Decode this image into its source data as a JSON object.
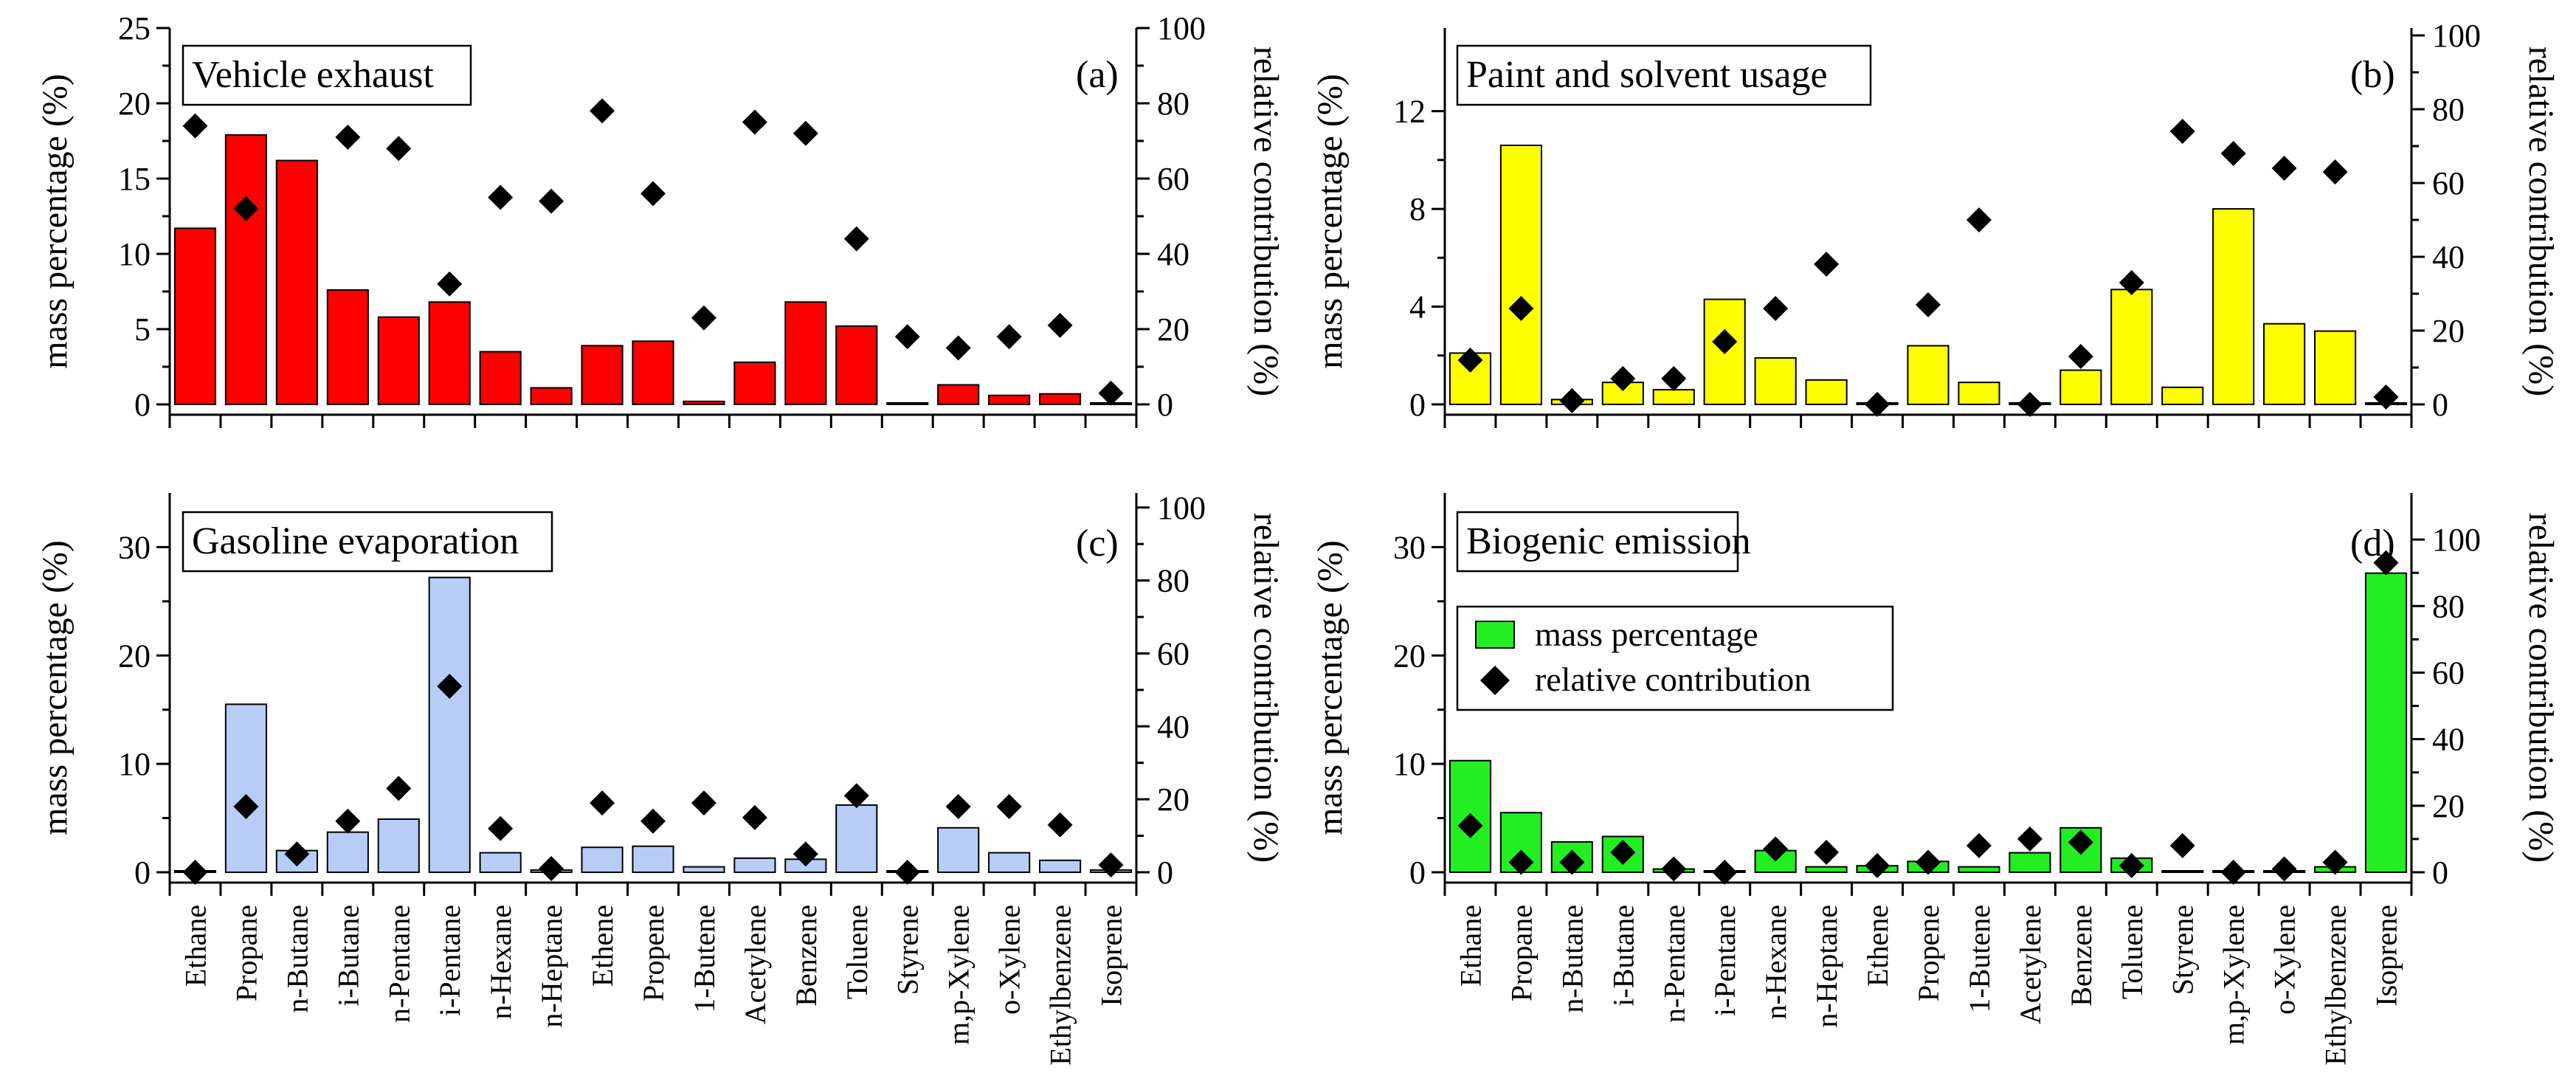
{
  "chart_data": [
    {
      "type": "bar",
      "panel_label": "(a)",
      "title": "Vehicle exhaust",
      "ylabel": "mass percentage (%)",
      "y2label": "relative contribution (%)",
      "ylim": [
        0,
        25
      ],
      "yticks": [
        0,
        5,
        10,
        15,
        20,
        25
      ],
      "y2lim": [
        0,
        100
      ],
      "y2ticks": [
        0,
        20,
        40,
        60,
        80,
        100
      ],
      "bar_color": "#ff0000",
      "categories": [
        "Ethane",
        "Propane",
        "n-Butane",
        "i-Butane",
        "n-Pentane",
        "i-Pentane",
        "n-Hexane",
        "n-Heptane",
        "Ethene",
        "Propene",
        "1-Butene",
        "Acetylene",
        "Benzene",
        "Toluene",
        "Styrene",
        "m,p-Xylene",
        "o-Xylene",
        "Ethylbenzene",
        "Isoprene"
      ],
      "series": [
        {
          "name": "mass percentage",
          "axis": "left",
          "values": [
            11.7,
            17.9,
            16.2,
            7.6,
            5.8,
            6.8,
            3.5,
            1.1,
            3.9,
            4.2,
            0.2,
            2.8,
            6.8,
            5.2,
            0.1,
            1.3,
            0.6,
            0.7,
            0.1
          ]
        },
        {
          "name": "relative contribution",
          "axis": "right",
          "values": [
            74,
            52,
            null,
            71,
            68,
            32,
            55,
            54,
            78,
            56,
            23,
            75,
            72,
            44,
            18,
            15,
            18,
            21,
            3
          ]
        }
      ]
    },
    {
      "type": "bar",
      "panel_label": "(b)",
      "title": "Paint and solvent usage",
      "ylabel": "mass percentage (%)",
      "y2label": "relative contribution (%)",
      "ylim": [
        0,
        15.4
      ],
      "yticks": [
        0,
        4,
        8,
        12
      ],
      "y2lim": [
        0,
        102
      ],
      "y2ticks": [
        0,
        20,
        40,
        60,
        80,
        100
      ],
      "bar_color": "#ffff00",
      "categories": [
        "Ethane",
        "Propane",
        "n-Butane",
        "i-Butane",
        "n-Pentane",
        "i-Pentane",
        "n-Hexane",
        "n-Heptane",
        "Ethene",
        "Propene",
        "1-Butene",
        "Acetylene",
        "Benzene",
        "Toluene",
        "Styrene",
        "m,p-Xylene",
        "o-Xylene",
        "Ethylbenzene",
        "Isoprene"
      ],
      "series": [
        {
          "name": "mass percentage",
          "axis": "left",
          "values": [
            2.1,
            10.6,
            0.2,
            0.9,
            0.6,
            4.3,
            1.9,
            1.0,
            0.0,
            2.4,
            0.9,
            0.0,
            1.4,
            4.7,
            0.7,
            8.0,
            3.3,
            3.0,
            0.0
          ]
        },
        {
          "name": "relative contribution",
          "axis": "right",
          "values": [
            12,
            26,
            1,
            7,
            7,
            17,
            26,
            38,
            0,
            27,
            50,
            0,
            13,
            33,
            74,
            68,
            64,
            63,
            2
          ]
        }
      ]
    },
    {
      "type": "bar",
      "panel_label": "(c)",
      "title": "Gasoline evaporation",
      "ylabel": "mass percentage (%)",
      "y2label": "relative contribution (%)",
      "ylim": [
        0,
        35
      ],
      "yticks": [
        0,
        10,
        20,
        30
      ],
      "y2lim": [
        0,
        104
      ],
      "y2ticks": [
        0,
        20,
        40,
        60,
        80,
        100
      ],
      "bar_color": "#b7cdf7",
      "categories": [
        "Ethane",
        "Propane",
        "n-Butane",
        "i-Butane",
        "n-Pentane",
        "i-Pentane",
        "n-Hexane",
        "n-Heptane",
        "Ethene",
        "Propene",
        "1-Butene",
        "Acetylene",
        "Benzene",
        "Toluene",
        "Styrene",
        "m,p-Xylene",
        "o-Xylene",
        "Ethylbenzene",
        "Isoprene"
      ],
      "series": [
        {
          "name": "mass percentage",
          "axis": "left",
          "values": [
            0.1,
            15.5,
            2.0,
            3.7,
            4.9,
            27.2,
            1.8,
            0.2,
            2.3,
            2.4,
            0.5,
            1.3,
            1.2,
            6.2,
            0.0,
            4.1,
            1.8,
            1.1,
            0.2
          ]
        },
        {
          "name": "relative contribution",
          "axis": "right",
          "values": [
            0,
            18,
            5,
            14,
            23,
            51,
            12,
            1,
            19,
            14,
            19,
            15,
            5,
            21,
            0,
            18,
            18,
            13,
            2
          ]
        }
      ]
    },
    {
      "type": "bar",
      "panel_label": "(d)",
      "title": "Biogenic emission",
      "ylabel": "mass percentage (%)",
      "y2label": "relative contribution (%)",
      "ylim": [
        0,
        35
      ],
      "yticks": [
        0,
        10,
        20,
        30
      ],
      "y2lim": [
        0,
        114
      ],
      "y2ticks": [
        0,
        20,
        40,
        60,
        80,
        100
      ],
      "bar_color": "#22ee22",
      "legend": {
        "bar": "mass percentage",
        "marker": "relative contribution"
      },
      "categories": [
        "Ethane",
        "Propane",
        "n-Butane",
        "i-Butane",
        "n-Pentane",
        "i-Pentane",
        "n-Hexane",
        "n-Heptane",
        "Ethene",
        "Propene",
        "1-Butene",
        "Acetylene",
        "Benzene",
        "Toluene",
        "Styrene",
        "m,p-Xylene",
        "o-Xylene",
        "Ethylbenzene",
        "Isoprene"
      ],
      "series": [
        {
          "name": "mass percentage",
          "axis": "left",
          "values": [
            10.3,
            5.5,
            2.8,
            3.3,
            0.3,
            0.0,
            2.0,
            0.5,
            0.6,
            1.0,
            0.5,
            1.8,
            4.1,
            1.3,
            0.1,
            0.0,
            0.1,
            0.5,
            27.6
          ]
        },
        {
          "name": "relative contribution",
          "axis": "right",
          "values": [
            14,
            3,
            3,
            6,
            1,
            0,
            7,
            6,
            2,
            3,
            8,
            10,
            9,
            2,
            8,
            0,
            1,
            3,
            93
          ]
        }
      ]
    }
  ]
}
